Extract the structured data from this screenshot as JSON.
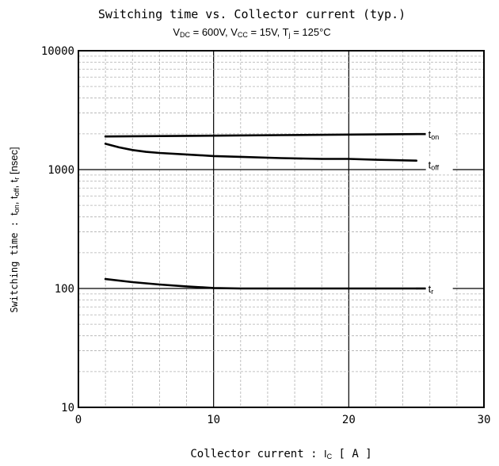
{
  "chart_data": {
    "type": "line",
    "title": "Switching time vs. Collector current (typ.)",
    "subtitle": "V DC = 600V, VCC = 15V, Tj = 125°C",
    "xlabel": "Collector current :  Ic [ A ]",
    "ylabel": "Switching time : ton, toff, tr [nsec]",
    "xlim": [
      0,
      30
    ],
    "ylim": [
      10,
      10000
    ],
    "yscale": "log",
    "grid": true,
    "x_ticks": [
      "0",
      "10",
      "20",
      "30"
    ],
    "y_ticks": [
      "10",
      "100",
      "1000",
      "10000"
    ],
    "series": [
      {
        "name": "ton",
        "x": [
          2,
          5,
          10,
          15,
          20,
          25
        ],
        "y": [
          1900,
          1910,
          1930,
          1950,
          1970,
          1990
        ]
      },
      {
        "name": "toff",
        "x": [
          2,
          3,
          4,
          5,
          6,
          8,
          10,
          12,
          15,
          18,
          20,
          22,
          25
        ],
        "y": [
          1650,
          1540,
          1460,
          1410,
          1380,
          1340,
          1300,
          1280,
          1250,
          1230,
          1230,
          1210,
          1190
        ]
      },
      {
        "name": "tr",
        "x": [
          2,
          4,
          6,
          8,
          10,
          12,
          15,
          20,
          25
        ],
        "y": [
          120,
          113,
          108,
          104,
          101,
          100,
          100,
          100,
          100
        ]
      }
    ],
    "legend_placement": "inline labels at right end of curves"
  }
}
